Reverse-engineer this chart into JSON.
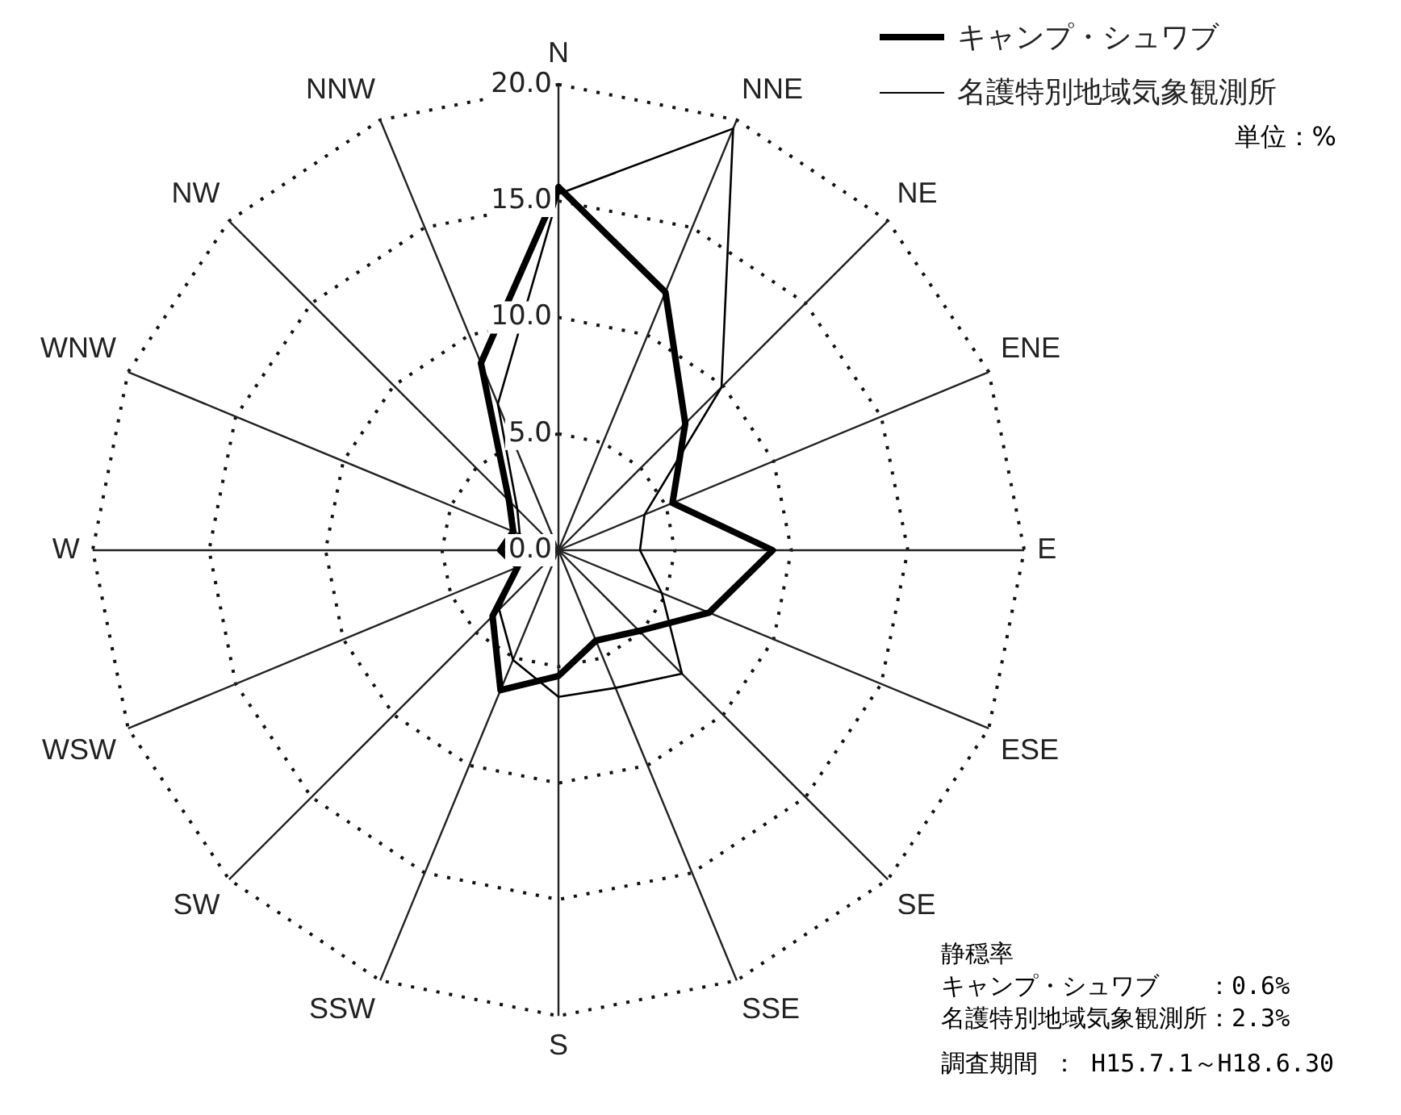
{
  "chart_data": {
    "type": "radar",
    "categories": [
      "N",
      "NNE",
      "NE",
      "ENE",
      "E",
      "ESE",
      "SE",
      "SSE",
      "S",
      "SSW",
      "SW",
      "WSW",
      "W",
      "WNW",
      "NW",
      "NNW"
    ],
    "series": [
      {
        "name": "キャンプ・シュワブ",
        "color": "#000000",
        "values": [
          15.6,
          12.0,
          7.7,
          5.3,
          9.2,
          7.0,
          4.9,
          4.2,
          5.4,
          6.5,
          4.0,
          1.9,
          2.5,
          2.1,
          3.0,
          8.7
        ]
      },
      {
        "name": "名護特別地域気象観測所",
        "color": "#000000",
        "values": [
          15.3,
          19.6,
          9.9,
          4.0,
          3.5,
          4.8,
          7.5,
          6.4,
          6.3,
          5.1,
          3.6,
          1.9,
          1.5,
          1.8,
          2.5,
          6.8
        ]
      }
    ],
    "ylim": [
      0,
      20
    ],
    "yticks": [
      {
        "value": 0,
        "label": "0.0"
      },
      {
        "value": 5,
        "label": "5.0"
      },
      {
        "value": 10,
        "label": "10.0"
      },
      {
        "value": 15,
        "label": "15.0"
      },
      {
        "value": 20,
        "label": "20.0"
      }
    ],
    "grid": true,
    "legend": "top right",
    "marker": "none",
    "line_style": "solid",
    "annotations": [
      "単位：%",
      "静穏率",
      "キャンプ・シュワブ　　：0.6%",
      "名護特別地域気象観測所：2.3%",
      "調査期間 ： H15.7.1～H18.6.30"
    ]
  }
}
